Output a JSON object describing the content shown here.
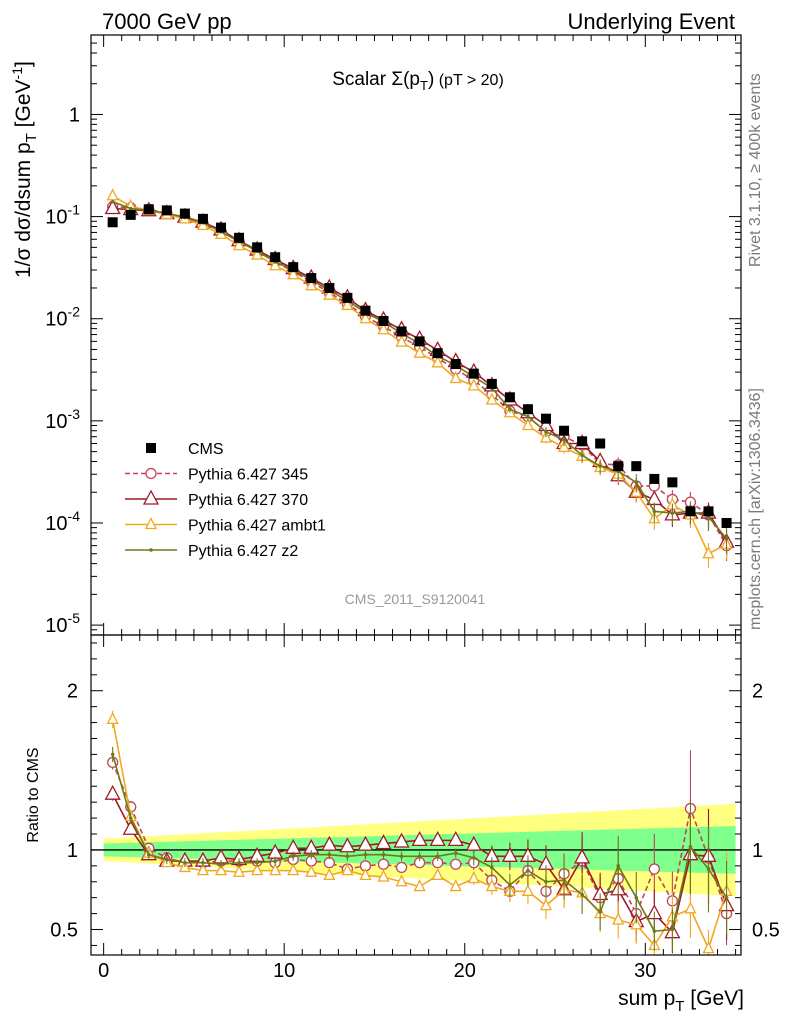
{
  "header": {
    "left": "7000 GeV pp",
    "right": "Underlying Event"
  },
  "side_text": {
    "top": "Rivet 3.1.10, ≥ 400k events",
    "bottom": "mcplots.cern.ch [arXiv:1306.3436]"
  },
  "watermark": "CMS_2011_S9120041",
  "colors": {
    "cms": "#000000",
    "p345": "#c0445a",
    "p370": "#9e1a2a",
    "ambt1": "#f2a81d",
    "z2": "#6e7a1a",
    "band_yellow": "#ffff80",
    "band_green": "#7fff8c"
  },
  "chart_data": [
    {
      "type": "line",
      "title": "Scalar Σ(p_T) (pT > 20)",
      "title_parts": {
        "main": "Scalar Σ(p",
        "sub": "T",
        "close": ")",
        "small": "(pT > 20)"
      },
      "ylabel": "1/σ dσ/dsum p_T [GeV^-1]",
      "ylabel_parts": {
        "main": "1/σ dσ/dsum p",
        "sub": "T",
        "unit": "[GeV",
        "sup": "-1",
        "end": "]"
      },
      "yscale": "log",
      "ylim": [
        8e-06,
        6
      ],
      "xlim": [
        -0.7,
        35.3
      ],
      "yticks": [
        {
          "base": "10",
          "exp": "-5",
          "value": 1e-05
        },
        {
          "base": "10",
          "exp": "-4",
          "value": 0.0001
        },
        {
          "base": "10",
          "exp": "-3",
          "value": 0.001
        },
        {
          "base": "10",
          "exp": "-2",
          "value": 0.01
        },
        {
          "base": "10",
          "exp": "-1",
          "value": 0.1
        },
        {
          "base": "1",
          "exp": "",
          "value": 1
        }
      ],
      "legend_position": "lower-left",
      "x": [
        0.5,
        1.5,
        2.5,
        3.5,
        4.5,
        5.5,
        6.5,
        7.5,
        8.5,
        9.5,
        10.5,
        11.5,
        12.5,
        13.5,
        14.5,
        15.5,
        16.5,
        17.5,
        18.5,
        19.5,
        20.5,
        21.5,
        22.5,
        23.5,
        24.5,
        25.5,
        26.5,
        27.5,
        28.5,
        29.5,
        30.5,
        31.5,
        32.5,
        33.5,
        34.5
      ],
      "series": [
        {
          "name": "CMS",
          "key": "cms",
          "style": "square",
          "values": [
            0.088,
            0.104,
            0.118,
            0.115,
            0.107,
            0.095,
            0.078,
            0.062,
            0.05,
            0.04,
            0.032,
            0.025,
            0.02,
            0.016,
            0.012,
            0.0095,
            0.0075,
            0.006,
            0.0046,
            0.0036,
            0.0029,
            0.0023,
            0.0017,
            0.0013,
            0.00105,
            0.0008,
            0.00063,
            0.0006,
            0.00036,
            0.00036,
            0.00027,
            0.00025,
            0.00013,
            0.00013,
            0.0001
          ]
        },
        {
          "name": "Pythia 6.427 345",
          "key": "p345",
          "style": "circle-dashed",
          "values": [
            0.125,
            0.122,
            0.118,
            0.108,
            0.097,
            0.086,
            0.072,
            0.057,
            0.046,
            0.036,
            0.029,
            0.023,
            0.018,
            0.014,
            0.0105,
            0.0084,
            0.0066,
            0.0053,
            0.0041,
            0.0032,
            0.0025,
            0.0018,
            0.00125,
            0.0011,
            0.00078,
            0.0007,
            0.00058,
            0.00038,
            0.00037,
            0.00023,
            0.00023,
            0.00017,
            0.00016,
            0.00012,
            6e-05
          ]
        },
        {
          "name": "Pythia 6.427 370",
          "key": "p370",
          "style": "triangle-open",
          "values": [
            0.12,
            0.117,
            0.114,
            0.107,
            0.099,
            0.088,
            0.074,
            0.058,
            0.047,
            0.038,
            0.031,
            0.025,
            0.02,
            0.016,
            0.012,
            0.0097,
            0.0078,
            0.0063,
            0.0049,
            0.0038,
            0.003,
            0.0022,
            0.0016,
            0.0012,
            0.0009,
            0.0006,
            0.0006,
            0.0004,
            0.00029,
            0.0002,
            0.00017,
            0.00012,
            0.000125,
            0.000125,
            6.5e-05
          ]
        },
        {
          "name": "Pythia 6.427 ambt1",
          "key": "ambt1",
          "style": "triangle-small",
          "values": [
            0.16,
            0.126,
            0.115,
            0.105,
            0.095,
            0.082,
            0.067,
            0.052,
            0.042,
            0.033,
            0.027,
            0.021,
            0.017,
            0.0135,
            0.01,
            0.0078,
            0.0059,
            0.0046,
            0.0037,
            0.0026,
            0.0022,
            0.0016,
            0.0012,
            0.0009,
            0.00068,
            0.00055,
            0.00045,
            0.00035,
            0.0003,
            0.0002,
            0.00011,
            0.00015,
            0.00012,
            5e-05,
            6.2e-05
          ]
        },
        {
          "name": "Pythia 6.427 z2",
          "key": "z2",
          "style": "dot",
          "values": [
            0.14,
            0.12,
            0.115,
            0.108,
            0.098,
            0.087,
            0.071,
            0.057,
            0.046,
            0.036,
            0.03,
            0.024,
            0.019,
            0.015,
            0.0115,
            0.0093,
            0.0072,
            0.0057,
            0.0043,
            0.0035,
            0.0027,
            0.0021,
            0.0013,
            0.0011,
            0.00078,
            0.00065,
            0.00046,
            0.00036,
            0.00032,
            0.00025,
            0.00013,
            0.000125,
            0.00013,
            0.000115,
            7e-05
          ]
        }
      ]
    },
    {
      "type": "line",
      "ylabel": "Ratio to CMS",
      "xlabel": "sum p_T [GeV]",
      "xlabel_parts": {
        "main": "sum p",
        "sub": "T",
        "unit": "[GeV]"
      },
      "ylim": [
        0.34,
        2.35
      ],
      "xlim": [
        -0.7,
        35.3
      ],
      "yticks": [
        {
          "label": "0.5",
          "value": 0.5
        },
        {
          "label": "1",
          "value": 1
        },
        {
          "label": "2",
          "value": 2
        }
      ],
      "xticks": [
        {
          "label": "0",
          "value": 0
        },
        {
          "label": "10",
          "value": 10
        },
        {
          "label": "20",
          "value": 20
        },
        {
          "label": "30",
          "value": 30
        }
      ],
      "x": [
        0.5,
        1.5,
        2.5,
        3.5,
        4.5,
        5.5,
        6.5,
        7.5,
        8.5,
        9.5,
        10.5,
        11.5,
        12.5,
        13.5,
        14.5,
        15.5,
        16.5,
        17.5,
        18.5,
        19.5,
        20.5,
        21.5,
        22.5,
        23.5,
        24.5,
        25.5,
        26.5,
        27.5,
        28.5,
        29.5,
        30.5,
        31.5,
        32.5,
        33.5,
        34.5
      ],
      "bands": {
        "x_edges": [
          0,
          35
        ],
        "yellow_half_width": [
          0.07,
          0.29
        ],
        "green_half_width": [
          0.04,
          0.15
        ]
      },
      "series": [
        {
          "name": "Pythia 6.427 345",
          "key": "p345",
          "style": "circle-dashed",
          "values": [
            1.55,
            1.27,
            1.01,
            0.95,
            0.92,
            0.92,
            0.93,
            0.93,
            0.93,
            0.92,
            0.94,
            0.93,
            0.92,
            0.88,
            0.9,
            0.91,
            0.89,
            0.92,
            0.92,
            0.91,
            0.92,
            0.81,
            0.74,
            0.87,
            0.74,
            0.85,
            0.93,
            0.7,
            0.82,
            0.6,
            0.88,
            0.68,
            1.26,
            0.95,
            0.6
          ]
        },
        {
          "name": "Pythia 6.427 370",
          "key": "p370",
          "style": "triangle-open",
          "values": [
            1.35,
            1.13,
            0.97,
            0.93,
            0.93,
            0.93,
            0.95,
            0.94,
            0.96,
            0.98,
            1.01,
            1.01,
            1.03,
            1.02,
            1.03,
            1.04,
            1.05,
            1.06,
            1.06,
            1.06,
            1.03,
            0.96,
            0.96,
            0.96,
            0.91,
            0.75,
            0.95,
            0.72,
            0.75,
            0.55,
            0.6,
            0.48,
            0.97,
            0.96,
            0.65
          ]
        },
        {
          "name": "Pythia 6.427 ambt1",
          "key": "ambt1",
          "style": "triangle-small",
          "values": [
            1.82,
            1.21,
            0.98,
            0.92,
            0.89,
            0.87,
            0.87,
            0.86,
            0.87,
            0.87,
            0.87,
            0.86,
            0.84,
            0.87,
            0.84,
            0.83,
            0.8,
            0.77,
            0.84,
            0.77,
            0.82,
            0.77,
            0.74,
            0.74,
            0.65,
            0.75,
            0.73,
            0.6,
            0.56,
            0.53,
            0.4,
            0.58,
            0.63,
            0.38,
            0.74
          ]
        },
        {
          "name": "Pythia 6.427 z2",
          "key": "z2",
          "style": "dot",
          "values": [
            1.6,
            1.2,
            0.97,
            0.94,
            0.92,
            0.92,
            0.91,
            0.92,
            0.92,
            0.93,
            0.96,
            0.97,
            0.97,
            0.96,
            0.97,
            0.97,
            0.96,
            0.96,
            0.96,
            0.98,
            0.95,
            0.89,
            0.78,
            0.87,
            0.8,
            0.81,
            0.72,
            0.61,
            0.9,
            0.7,
            0.49,
            0.5,
            1.02,
            0.88,
            0.7
          ]
        }
      ]
    }
  ]
}
